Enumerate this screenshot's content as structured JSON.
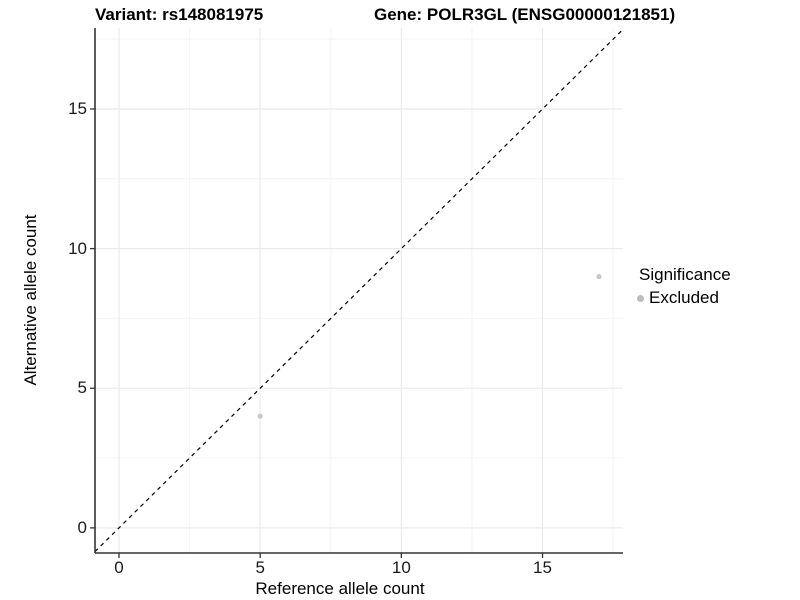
{
  "chart_data": {
    "type": "scatter",
    "title_left": "Variant: rs148081975",
    "title_right": "Gene: POLR3GL (ENSG00000121851)",
    "xlabel": "Reference allele count",
    "ylabel": "Alternative allele count",
    "xlim": [
      -0.85,
      17.85
    ],
    "ylim": [
      -0.9,
      17.9
    ],
    "x_ticks": [
      0,
      5,
      10,
      15
    ],
    "y_ticks": [
      0,
      5,
      10,
      15
    ],
    "x_minor_ticks": [
      2.5,
      7.5,
      12.5,
      17.5
    ],
    "y_minor_ticks": [
      2.5,
      7.5,
      12.5,
      17.5
    ],
    "grid": "on",
    "reference_line": {
      "type": "identity",
      "slope": 1,
      "intercept": 0,
      "style": "dashed",
      "color": "#000000"
    },
    "series": [
      {
        "name": "Excluded",
        "color": "#c9c9c9",
        "points": [
          {
            "x": 5,
            "y": 4
          },
          {
            "x": 17,
            "y": 9
          }
        ]
      }
    ],
    "legend": {
      "title": "Significance",
      "position": "right",
      "entries": [
        {
          "label": "Excluded",
          "color": "#bdbdbd"
        }
      ]
    },
    "colors": {
      "point": "#c9c9c9",
      "grid_major": "#ebebeb",
      "grid_minor": "#f4f4f4",
      "axis_line": "#333333",
      "tick_mark": "#333333",
      "reference_line": "#000000"
    }
  }
}
